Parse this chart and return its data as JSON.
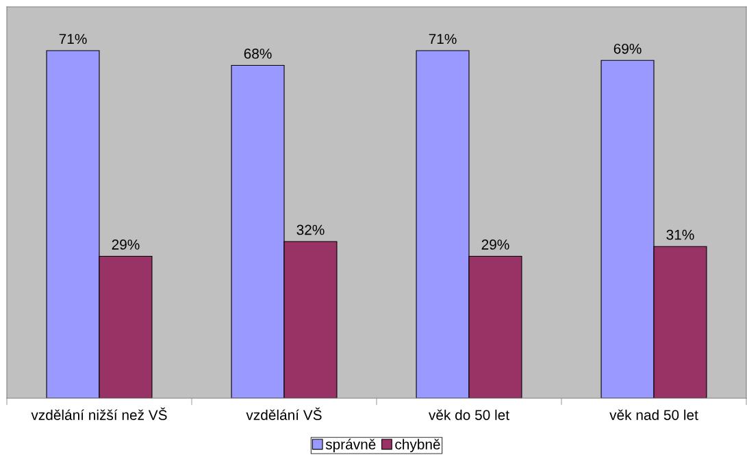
{
  "chart_data": {
    "type": "bar",
    "categories": [
      "vzdělání nižší než VŠ",
      "vzdělání VŠ",
      "věk do 50 let",
      "věk nad 50 let"
    ],
    "series": [
      {
        "name": "správně",
        "color": "#9999ff",
        "values": [
          71,
          68,
          71,
          69
        ],
        "value_labels": [
          "71%",
          "68%",
          "71%",
          "69%"
        ]
      },
      {
        "name": "chybně",
        "color": "#993366",
        "values": [
          29,
          32,
          29,
          31
        ],
        "value_labels": [
          "29%",
          "32%",
          "29%",
          "31%"
        ]
      }
    ],
    "legend": "bottom",
    "grid": false
  }
}
